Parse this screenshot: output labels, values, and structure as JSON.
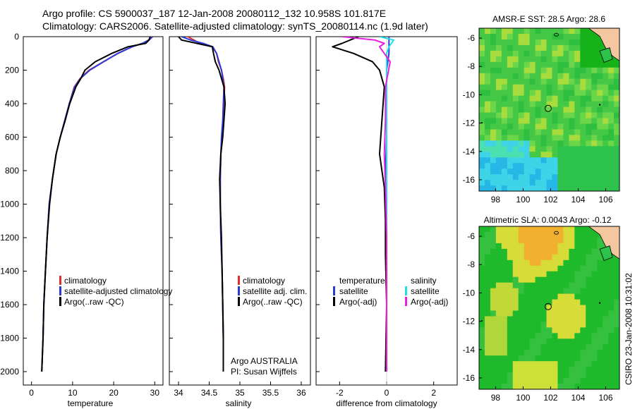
{
  "header": {
    "line1": "Argo profile: CS 5900037_187 12-Jan-2008 20080112_132 10.958S 101.817E",
    "line2": "Climatology: CARS2006. Satellite-adjusted climatology: synTS_20080114.nc (1.9d later)"
  },
  "side_label": "CSIRO 23-Jan-2008 10:31:02",
  "colors": {
    "climatology": "#e0302a",
    "satellite": "#2b3bd8",
    "argo": "#000000",
    "sal_satellite": "#1ee0e8",
    "sal_argo": "#e81ee0",
    "land": "#f5c7a0"
  },
  "chart_data": [
    {
      "type": "line",
      "title": "",
      "xlabel": "temperature",
      "ylabel": "",
      "xlim": [
        -2,
        32
      ],
      "ylim": [
        2080,
        0
      ],
      "xticks": [
        0,
        10,
        20,
        30
      ],
      "yticks": [
        0,
        200,
        400,
        600,
        800,
        1000,
        1200,
        1400,
        1600,
        1800,
        2000
      ],
      "legend": [
        "climatology",
        "satellite-adjusted climatology",
        "Argo(..raw -QC)"
      ],
      "series": [
        {
          "name": "climatology",
          "color": "#e0302a",
          "x": [
            29.3,
            28.5,
            27.0,
            24.5,
            21.0,
            17.5,
            14.0,
            11.8,
            10.4,
            9.2,
            8.1,
            7.0,
            6.0,
            5.1,
            4.3,
            3.8,
            3.4,
            3.0,
            2.8,
            2.5
          ],
          "y": [
            0,
            20,
            40,
            60,
            100,
            150,
            200,
            250,
            300,
            400,
            500,
            600,
            700,
            850,
            1000,
            1200,
            1400,
            1600,
            1800,
            2000
          ]
        },
        {
          "name": "satellite-adjusted climatology",
          "color": "#2b3bd8",
          "x": [
            29.5,
            28.6,
            27.0,
            24.5,
            21.0,
            17.5,
            14.2,
            11.9,
            10.5,
            9.2,
            8.1,
            7.0,
            6.0,
            5.1,
            4.3,
            3.8,
            3.4,
            3.0,
            2.8,
            2.5
          ],
          "y": [
            0,
            20,
            40,
            60,
            100,
            150,
            200,
            250,
            300,
            400,
            500,
            600,
            700,
            850,
            1000,
            1200,
            1400,
            1600,
            1800,
            2000
          ]
        },
        {
          "name": "Argo(..raw -QC)",
          "color": "#000000",
          "x": [
            28.9,
            28.6,
            27.8,
            23.5,
            19.5,
            15.5,
            13.0,
            12.0,
            10.8,
            9.3,
            8.2,
            7.0,
            6.0,
            5.1,
            4.4,
            3.8,
            3.4,
            3.0,
            2.8,
            2.5
          ],
          "y": [
            0,
            20,
            40,
            60,
            100,
            150,
            200,
            250,
            300,
            400,
            500,
            600,
            700,
            850,
            1000,
            1200,
            1400,
            1600,
            1800,
            2000
          ]
        }
      ]
    },
    {
      "type": "line",
      "title": "",
      "xlabel": "salinity",
      "ylabel": "",
      "xlim": [
        33.85,
        36.15
      ],
      "ylim": [
        2080,
        0
      ],
      "xticks": [
        34,
        34.5,
        35,
        35.5,
        36
      ],
      "legend": [
        "climatology",
        "satellite adj. clim.",
        "Argo(..raw -QC)"
      ],
      "annotation": [
        "Argo AUSTRALIA",
        "PI: Susan Wijffels"
      ],
      "series": [
        {
          "name": "climatology",
          "color": "#e0302a",
          "x": [
            34.15,
            34.25,
            34.35,
            34.55,
            34.62,
            34.65,
            34.7,
            34.73,
            34.75,
            34.74,
            34.73,
            34.71,
            34.69,
            34.68,
            34.68,
            34.69,
            34.71,
            34.72,
            34.73,
            34.73
          ],
          "y": [
            0,
            20,
            40,
            60,
            100,
            150,
            200,
            250,
            300,
            400,
            500,
            600,
            700,
            850,
            1000,
            1200,
            1400,
            1600,
            1800,
            2000
          ]
        },
        {
          "name": "satellite adj. clim.",
          "color": "#2b3bd8",
          "x": [
            34.05,
            34.2,
            34.4,
            34.56,
            34.62,
            34.66,
            34.7,
            34.72,
            34.74,
            34.73,
            34.72,
            34.7,
            34.69,
            34.68,
            34.68,
            34.69,
            34.71,
            34.72,
            34.73,
            34.73
          ],
          "y": [
            0,
            20,
            40,
            60,
            100,
            150,
            200,
            250,
            300,
            400,
            500,
            600,
            700,
            850,
            1000,
            1200,
            1400,
            1600,
            1800,
            2000
          ]
        },
        {
          "name": "Argo(..raw -QC)",
          "color": "#000000",
          "x": [
            34.0,
            34.05,
            34.3,
            34.55,
            34.57,
            34.6,
            34.66,
            34.7,
            34.74,
            34.76,
            34.74,
            34.72,
            34.69,
            34.67,
            34.68,
            34.7,
            34.71,
            34.72,
            34.73,
            34.73
          ],
          "y": [
            0,
            20,
            40,
            60,
            100,
            150,
            200,
            250,
            300,
            400,
            500,
            600,
            700,
            850,
            1000,
            1200,
            1400,
            1600,
            1800,
            2000
          ]
        }
      ]
    },
    {
      "type": "line",
      "title": "",
      "xlabel": "difference from climatology",
      "ylabel": "",
      "xlim": [
        -3,
        3
      ],
      "ylim": [
        2080,
        0
      ],
      "xticks": [
        -2,
        0,
        2
      ],
      "legend_left": [
        "temperature",
        "satellite",
        "Argo(-adj)"
      ],
      "legend_right": [
        "salinity",
        "satellite",
        "Argo(-adj)"
      ],
      "series": [
        {
          "name": "temperature satellite",
          "color": "#2b3bd8",
          "x": [
            0.1,
            0.1,
            0.0,
            0.0,
            0.0,
            -0.05,
            0.0,
            0.0,
            0.0,
            0.0,
            0.0
          ],
          "y": [
            0,
            100,
            200,
            400,
            600,
            800,
            1000,
            1200,
            1500,
            1800,
            2000
          ]
        },
        {
          "name": "temperature Argo(-adj)",
          "color": "#000000",
          "x": [
            -1.2,
            -1.9,
            -2.3,
            -1.4,
            -0.6,
            -0.3,
            -0.1,
            -0.2,
            -0.3,
            -0.2,
            -0.1,
            -0.05,
            -0.05,
            0.0,
            -0.05
          ],
          "y": [
            0,
            40,
            60,
            100,
            150,
            200,
            300,
            500,
            700,
            800,
            900,
            1100,
            1300,
            1600,
            2000
          ]
        },
        {
          "name": "salinity satellite",
          "color": "#1ee0e8",
          "x": [
            -0.3,
            0.3,
            0.1,
            0.0,
            0.0,
            0.0,
            0.0,
            0.0,
            0.0,
            0.0
          ],
          "y": [
            0,
            20,
            60,
            100,
            200,
            400,
            800,
            1200,
            1600,
            2000
          ]
        },
        {
          "name": "salinity Argo(-adj)",
          "color": "#e81ee0",
          "x": [
            -1.9,
            -0.5,
            -0.1,
            -0.3,
            0.15,
            -0.05,
            -0.05,
            -0.1,
            -0.05,
            0.0,
            0.0
          ],
          "y": [
            0,
            20,
            40,
            60,
            150,
            300,
            500,
            700,
            900,
            1200,
            2000
          ]
        }
      ]
    },
    {
      "type": "heatmap",
      "title": "AMSR-E SST: 28.5 Argo: 28.6",
      "xlim": [
        96.8,
        107.0
      ],
      "ylim": [
        -16.8,
        -5.3
      ],
      "xticks": [
        98,
        100,
        102,
        104,
        106
      ],
      "yticks": [
        -6,
        -8,
        -10,
        -12,
        -14,
        -16
      ],
      "marker": {
        "lon": 101.817,
        "lat": -10.958
      }
    },
    {
      "type": "heatmap",
      "title": "Altimetric SLA: 0.0043 Argo: -0.12",
      "xlim": [
        96.8,
        107.0
      ],
      "ylim": [
        -16.8,
        -5.3
      ],
      "xticks": [
        98,
        100,
        102,
        104,
        106
      ],
      "yticks": [
        -6,
        -8,
        -10,
        -12,
        -14,
        -16
      ],
      "marker": {
        "lon": 101.817,
        "lat": -10.958
      }
    }
  ]
}
